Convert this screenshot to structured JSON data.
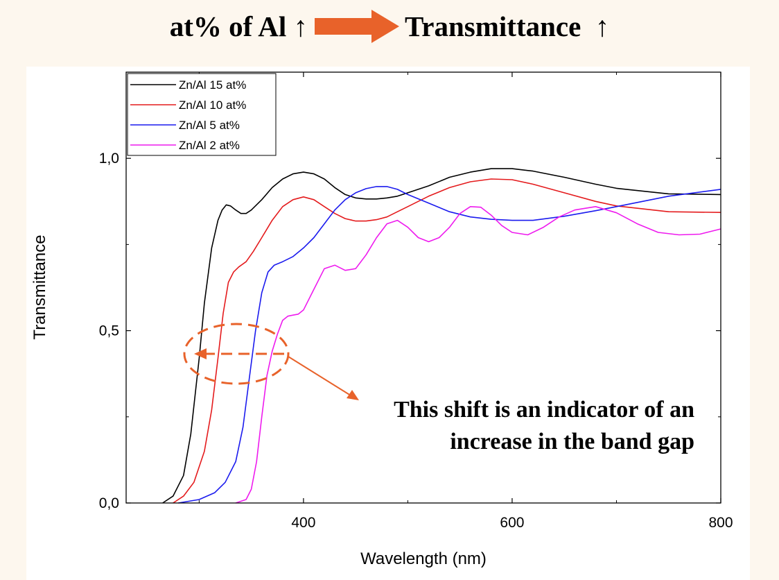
{
  "headline": {
    "left": "at% of Al ↑",
    "right": "Transmittance  ↑",
    "arrow_color": "#e8622a"
  },
  "annotation": {
    "text": "This shift is an indicator of an increase in the band gap",
    "color": "#e8622a"
  },
  "colors": {
    "background": "#fdf7ee",
    "panel": "#ffffff"
  },
  "chart_data": {
    "type": "line",
    "title": "",
    "xlabel": "Wavelength (nm)",
    "ylabel": "Transmittance",
    "xlim": [
      230,
      800
    ],
    "ylim": [
      0,
      1.25
    ],
    "x_ticks": [
      400,
      600,
      800
    ],
    "x_tick_labels": [
      "400",
      "600",
      "800"
    ],
    "x_minor_ticks": [
      300,
      500,
      700
    ],
    "y_ticks": [
      0,
      0.5,
      1.0
    ],
    "y_tick_labels": [
      "0,0",
      "0,5",
      "1,0"
    ],
    "y_minor_ticks": [
      0.25,
      0.75
    ],
    "grid": false,
    "legend_position": "top-left",
    "series": [
      {
        "name": "Zn/Al 15 at%",
        "color": "#000000",
        "x": [
          265,
          275,
          285,
          292,
          300,
          305,
          312,
          318,
          322,
          326,
          330,
          335,
          340,
          345,
          350,
          360,
          370,
          380,
          390,
          400,
          410,
          420,
          430,
          440,
          450,
          460,
          470,
          480,
          490,
          500,
          520,
          540,
          560,
          580,
          600,
          620,
          650,
          680,
          700,
          750,
          800
        ],
        "y": [
          0.0,
          0.02,
          0.08,
          0.2,
          0.42,
          0.58,
          0.74,
          0.82,
          0.85,
          0.865,
          0.862,
          0.85,
          0.84,
          0.84,
          0.85,
          0.88,
          0.915,
          0.94,
          0.955,
          0.96,
          0.955,
          0.94,
          0.915,
          0.895,
          0.885,
          0.882,
          0.882,
          0.885,
          0.89,
          0.9,
          0.92,
          0.945,
          0.96,
          0.97,
          0.97,
          0.963,
          0.945,
          0.925,
          0.913,
          0.897,
          0.895
        ]
      },
      {
        "name": "Zn/Al 10 at%",
        "color": "#e41a1c",
        "x": [
          275,
          285,
          295,
          305,
          312,
          318,
          323,
          328,
          333,
          338,
          345,
          352,
          360,
          370,
          380,
          390,
          400,
          410,
          420,
          430,
          440,
          450,
          460,
          470,
          480,
          490,
          500,
          520,
          540,
          560,
          580,
          600,
          620,
          650,
          680,
          700,
          750,
          800
        ],
        "y": [
          0.0,
          0.02,
          0.06,
          0.15,
          0.27,
          0.42,
          0.55,
          0.64,
          0.67,
          0.685,
          0.7,
          0.73,
          0.77,
          0.82,
          0.86,
          0.88,
          0.888,
          0.88,
          0.86,
          0.84,
          0.825,
          0.818,
          0.818,
          0.822,
          0.83,
          0.845,
          0.86,
          0.89,
          0.915,
          0.932,
          0.94,
          0.938,
          0.925,
          0.9,
          0.875,
          0.862,
          0.845,
          0.843
        ]
      },
      {
        "name": "Zn/Al 5 at%",
        "color": "#1a1aee",
        "x": [
          280,
          300,
          315,
          325,
          335,
          342,
          348,
          354,
          360,
          366,
          372,
          380,
          390,
          400,
          410,
          420,
          430,
          440,
          450,
          460,
          470,
          480,
          490,
          500,
          520,
          540,
          560,
          580,
          600,
          620,
          650,
          680,
          700,
          750,
          800
        ],
        "y": [
          0.0,
          0.01,
          0.03,
          0.06,
          0.12,
          0.22,
          0.36,
          0.5,
          0.61,
          0.67,
          0.69,
          0.7,
          0.715,
          0.74,
          0.77,
          0.81,
          0.85,
          0.88,
          0.9,
          0.912,
          0.918,
          0.918,
          0.91,
          0.895,
          0.87,
          0.845,
          0.83,
          0.823,
          0.82,
          0.82,
          0.832,
          0.848,
          0.86,
          0.89,
          0.91
        ]
      },
      {
        "name": "Zn/Al 2 at%",
        "color": "#ee1aee",
        "x": [
          335,
          340,
          345,
          350,
          355,
          360,
          365,
          370,
          375,
          380,
          385,
          390,
          395,
          400,
          410,
          420,
          430,
          440,
          450,
          460,
          470,
          480,
          490,
          500,
          510,
          520,
          530,
          540,
          550,
          560,
          570,
          580,
          590,
          600,
          615,
          630,
          645,
          660,
          680,
          700,
          720,
          740,
          760,
          780,
          800
        ],
        "y": [
          0.0,
          0.005,
          0.01,
          0.04,
          0.12,
          0.25,
          0.37,
          0.44,
          0.49,
          0.53,
          0.542,
          0.545,
          0.548,
          0.56,
          0.62,
          0.68,
          0.69,
          0.675,
          0.68,
          0.72,
          0.77,
          0.81,
          0.82,
          0.8,
          0.77,
          0.758,
          0.77,
          0.8,
          0.84,
          0.86,
          0.858,
          0.835,
          0.805,
          0.785,
          0.778,
          0.8,
          0.83,
          0.85,
          0.86,
          0.842,
          0.81,
          0.785,
          0.778,
          0.78,
          0.795
        ]
      }
    ]
  }
}
